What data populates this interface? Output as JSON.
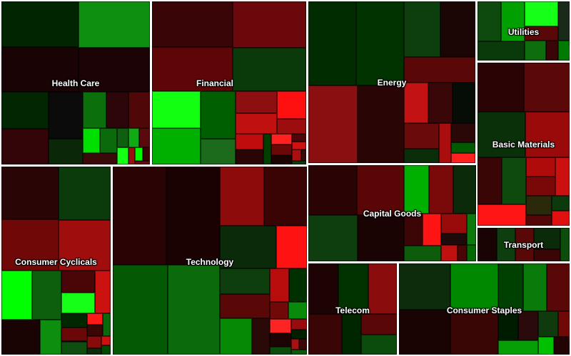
{
  "chart_data": {
    "type": "heatmap",
    "sectors": [
      {
        "name": "Health Care",
        "cells": [
          {
            "c": "#012401"
          },
          {
            "c": "#1a0304"
          },
          {
            "c": "#0f8f10"
          },
          {
            "c": "#1c0305"
          },
          {
            "c": "#022602"
          },
          {
            "c": "#330508"
          },
          {
            "c": "#0c0b0b"
          },
          {
            "c": "#0a2808"
          },
          {
            "c": "#0b6f0b"
          },
          {
            "c": "#2c0608"
          },
          {
            "c": "#500708"
          },
          {
            "c": "#00e000"
          },
          {
            "c": "#0a6b0a"
          },
          {
            "c": "#3a0a0a"
          },
          {
            "c": "#0e600e"
          },
          {
            "c": "#10aa12"
          },
          {
            "c": "#5a0a0c"
          },
          {
            "c": "#16ff16"
          },
          {
            "c": "#9a1010"
          },
          {
            "c": "#00f800"
          },
          {
            "c": "#3a0506"
          },
          {
            "c": "#6a0a0a"
          }
        ]
      },
      {
        "name": "Financial",
        "cells": [
          {
            "c": "#3a0507"
          },
          {
            "c": "#5d0507"
          },
          {
            "c": "#6a080b"
          },
          {
            "c": "#0a3a0a"
          },
          {
            "c": "#12ff12"
          },
          {
            "c": "#00b000"
          },
          {
            "c": "#006000"
          },
          {
            "c": "#1c6b1c"
          },
          {
            "c": "#8e0f10"
          },
          {
            "c": "#c01010"
          },
          {
            "c": "#ff1010"
          },
          {
            "c": "#9b0d0e"
          },
          {
            "c": "#c00c0c"
          },
          {
            "c": "#2a0506"
          },
          {
            "c": "#003f00"
          },
          {
            "c": "#ff2020"
          },
          {
            "c": "#6a0808"
          },
          {
            "c": "#1d0202"
          },
          {
            "c": "#500608"
          },
          {
            "c": "#cc1212"
          },
          {
            "c": "#aa1010"
          },
          {
            "c": "#3a0a08"
          },
          {
            "c": "#0e3a0e"
          }
        ]
      },
      {
        "name": "Energy",
        "cells": [
          {
            "c": "#002c00"
          },
          {
            "c": "#003300"
          },
          {
            "c": "#8a0f10"
          },
          {
            "c": "#2a0506"
          },
          {
            "c": "#0d3e0d"
          },
          {
            "c": "#1c0505"
          },
          {
            "c": "#5a0707"
          },
          {
            "c": "#c21214"
          },
          {
            "c": "#390707"
          },
          {
            "c": "#060c06"
          },
          {
            "c": "#6a0a0a"
          },
          {
            "c": "#0a2e0a"
          },
          {
            "c": "#aa0d0d"
          },
          {
            "c": "#2a0808"
          },
          {
            "c": "#005a00"
          },
          {
            "c": "#ff2020"
          }
        ]
      },
      {
        "name": "Utilities",
        "cells": [
          {
            "c": "#0e4a0e"
          },
          {
            "c": "#00a000"
          },
          {
            "c": "#0a3a0a"
          },
          {
            "c": "#16ff16"
          },
          {
            "c": "#5a0707"
          },
          {
            "c": "#1a2a1a"
          },
          {
            "c": "#0e6e0e"
          },
          {
            "c": "#3a0506"
          },
          {
            "c": "#007a00"
          }
        ]
      },
      {
        "name": "Basic Materials",
        "cells": [
          {
            "c": "#2a0404"
          },
          {
            "c": "#5a0808"
          },
          {
            "c": "#0a300a"
          },
          {
            "c": "#9a0a0a"
          },
          {
            "c": "#3a0505"
          },
          {
            "c": "#0e4a0e"
          },
          {
            "c": "#ff1515"
          },
          {
            "c": "#b00b0b"
          },
          {
            "c": "#7a0808"
          },
          {
            "c": "#cc1010"
          },
          {
            "c": "#2a2a0a"
          },
          {
            "c": "#550606"
          },
          {
            "c": "#0c3a0c"
          },
          {
            "c": "#e01010"
          }
        ]
      },
      {
        "name": "Consumer Cyclicals",
        "cells": [
          {
            "c": "#2a0505"
          },
          {
            "c": "#700808"
          },
          {
            "c": "#0b3a0b"
          },
          {
            "c": "#a00d0d"
          },
          {
            "c": "#00ff00"
          },
          {
            "c": "#0d5e0d"
          },
          {
            "c": "#1a0303"
          },
          {
            "c": "#0e8e0e"
          },
          {
            "c": "#4a0606"
          },
          {
            "c": "#16ff16"
          },
          {
            "c": "#cc1111"
          },
          {
            "c": "#002800"
          },
          {
            "c": "#6a0808"
          },
          {
            "c": "#0e4e0e"
          },
          {
            "c": "#ff1818"
          },
          {
            "c": "#3a0606"
          },
          {
            "c": "#0a6a0a"
          },
          {
            "c": "#880a0a"
          },
          {
            "c": "#0c2c0c"
          },
          {
            "c": "#d01010"
          },
          {
            "c": "#004a00"
          }
        ]
      },
      {
        "name": "Technology",
        "cells": [
          {
            "c": "#2a0405"
          },
          {
            "c": "#1a0203"
          },
          {
            "c": "#045a04"
          },
          {
            "c": "#0b6b0b"
          },
          {
            "c": "#8e0b0c"
          },
          {
            "c": "#3a0405"
          },
          {
            "c": "#0a2a0a"
          },
          {
            "c": "#ff1212"
          },
          {
            "c": "#0e3e0e"
          },
          {
            "c": "#5a0707"
          },
          {
            "c": "#068a06"
          },
          {
            "c": "#2a0a08"
          },
          {
            "c": "#b80d0d"
          },
          {
            "c": "#003000"
          },
          {
            "c": "#720909"
          },
          {
            "c": "#0a8a0a"
          },
          {
            "c": "#ff2424"
          },
          {
            "c": "#1e0303"
          },
          {
            "c": "#0c4c0c"
          },
          {
            "c": "#9a0c0c"
          },
          {
            "c": "#001e00"
          },
          {
            "c": "#aa1010"
          },
          {
            "c": "#3a0808"
          },
          {
            "c": "#0a5a0a"
          }
        ]
      },
      {
        "name": "Capital Goods",
        "cells": [
          {
            "c": "#2a0405"
          },
          {
            "c": "#5a0607"
          },
          {
            "c": "#0e3e0e"
          },
          {
            "c": "#1a0303"
          },
          {
            "c": "#00b000"
          },
          {
            "c": "#7a0909"
          },
          {
            "c": "#0a2a0a"
          },
          {
            "c": "#3c0506"
          },
          {
            "c": "#ff1414"
          },
          {
            "c": "#0c5c0c"
          },
          {
            "c": "#990b0b"
          },
          {
            "c": "#1e0a0a"
          },
          {
            "c": "#0a7a0a"
          },
          {
            "c": "#c01010"
          },
          {
            "c": "#4a0606"
          },
          {
            "c": "#006a00"
          }
        ]
      },
      {
        "name": "Transport",
        "cells": [
          {
            "c": "#1a0303"
          },
          {
            "c": "#0e3e0e"
          },
          {
            "c": "#5a0707"
          },
          {
            "c": "#0a2a0a"
          },
          {
            "c": "#3a0505"
          },
          {
            "c": "#0c4c0c"
          }
        ]
      },
      {
        "name": "Telecom",
        "cells": [
          {
            "c": "#1e0304"
          },
          {
            "c": "#003300"
          },
          {
            "c": "#8a0c0c"
          },
          {
            "c": "#3a0505"
          },
          {
            "c": "#002600"
          },
          {
            "c": "#5a0707"
          },
          {
            "c": "#0b4b0b"
          }
        ]
      },
      {
        "name": "Consumer Staples",
        "cells": [
          {
            "c": "#0c2c0c"
          },
          {
            "c": "#1a0303"
          },
          {
            "c": "#008800"
          },
          {
            "c": "#3a0505"
          },
          {
            "c": "#004000"
          },
          {
            "c": "#0a7a0a"
          },
          {
            "c": "#5a0707"
          },
          {
            "c": "#001c00"
          },
          {
            "c": "#2a0a0a"
          },
          {
            "c": "#06a006"
          },
          {
            "c": "#0e3a0e"
          },
          {
            "c": "#700808"
          },
          {
            "c": "#00c000"
          },
          {
            "c": "#220404"
          }
        ]
      }
    ]
  }
}
